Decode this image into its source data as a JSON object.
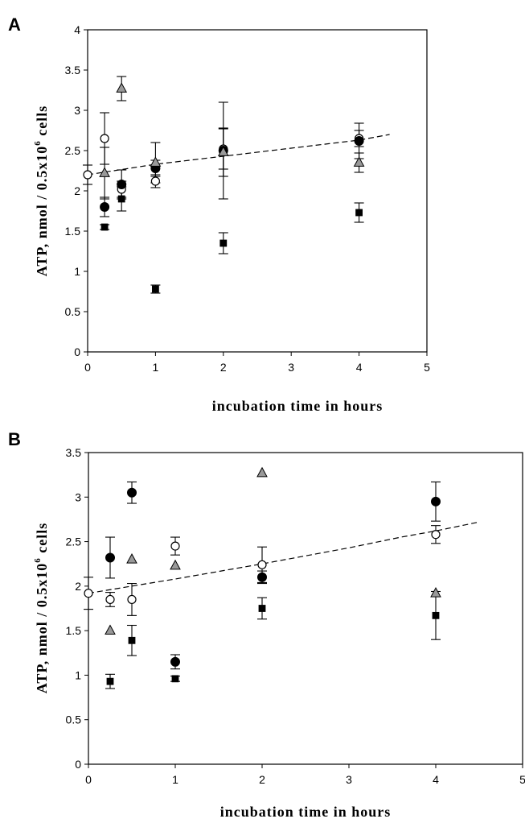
{
  "chart_data": [
    {
      "panel": "A",
      "type": "scatter",
      "xlabel": "incubation time in hours",
      "ylabel": {
        "pre": "ATP, nmol / 0.5x10",
        "sup": "6",
        "post": " cells"
      },
      "xlim": [
        0,
        5
      ],
      "ylim": [
        0,
        4
      ],
      "xticks": [
        "0",
        "1",
        "2",
        "3",
        "4",
        "5"
      ],
      "yticks": [
        "0",
        "0.5",
        "1",
        "1.5",
        "2",
        "2.5",
        "3",
        "3.5",
        "4"
      ],
      "grid": false,
      "series": [
        {
          "marker": "open-circle",
          "color": "#ffffff",
          "points": [
            {
              "x": 0,
              "y": 2.2,
              "err": 0.12
            },
            {
              "x": 0.25,
              "y": 2.65,
              "err": 0.32
            },
            {
              "x": 0.5,
              "y": 2.02,
              "err": 0.1
            },
            {
              "x": 1,
              "y": 2.12,
              "err": 0.08
            },
            {
              "x": 2,
              "y": 2.52,
              "err": 0.25
            },
            {
              "x": 4,
              "y": 2.65,
              "err": 0.1
            }
          ]
        },
        {
          "marker": "filled-circle",
          "color": "#000000",
          "points": [
            {
              "x": 0.25,
              "y": 1.8,
              "err": 0.12
            },
            {
              "x": 0.5,
              "y": 2.08,
              "err": 0.18
            },
            {
              "x": 1,
              "y": 2.28,
              "err": 0.1
            },
            {
              "x": 2,
              "y": 2.5,
              "err": 0.6
            },
            {
              "x": 4,
              "y": 2.62,
              "err": 0.22
            }
          ]
        },
        {
          "marker": "triangle",
          "color": "#999999",
          "points": [
            {
              "x": 0.25,
              "y": 2.22,
              "err": 0.32
            },
            {
              "x": 0.5,
              "y": 3.27,
              "err": 0.15
            },
            {
              "x": 1,
              "y": 2.35,
              "err": 0.25
            },
            {
              "x": 2,
              "y": 2.48,
              "err": 0.3
            },
            {
              "x": 4,
              "y": 2.35,
              "err": 0.12
            }
          ]
        },
        {
          "marker": "filled-square",
          "color": "#000000",
          "points": [
            {
              "x": 0.25,
              "y": 1.55,
              "err": 0.03
            },
            {
              "x": 0.5,
              "y": 1.9,
              "err": 0.15
            },
            {
              "x": 1,
              "y": 0.78,
              "err": 0.05
            },
            {
              "x": 2,
              "y": 1.35,
              "err": 0.13
            },
            {
              "x": 4,
              "y": 1.73,
              "err": 0.12
            }
          ]
        }
      ],
      "trend": {
        "style": "dashed",
        "x": [
          0,
          1,
          2,
          3,
          4,
          4.45
        ],
        "y": [
          2.2,
          2.33,
          2.43,
          2.53,
          2.63,
          2.7
        ]
      }
    },
    {
      "panel": "B",
      "type": "scatter",
      "xlabel": "incubation time in hours",
      "ylabel": {
        "pre": "ATP, nmol / 0.5x10",
        "sup": "6",
        "post": " cells"
      },
      "xlim": [
        0,
        5
      ],
      "ylim": [
        0,
        3.5
      ],
      "xticks": [
        "0",
        "1",
        "2",
        "3",
        "4",
        "5"
      ],
      "yticks": [
        "0",
        "0.5",
        "1",
        "1.5",
        "2",
        "2.5",
        "3",
        "3.5"
      ],
      "grid": false,
      "series": [
        {
          "marker": "open-circle",
          "color": "#ffffff",
          "points": [
            {
              "x": 0,
              "y": 1.92,
              "err": 0.18
            },
            {
              "x": 0.25,
              "y": 1.85,
              "err": 0.08
            },
            {
              "x": 0.5,
              "y": 1.85,
              "err": 0.18
            },
            {
              "x": 1,
              "y": 2.45,
              "err": 0.1
            },
            {
              "x": 2,
              "y": 2.24,
              "err": 0.2
            },
            {
              "x": 4,
              "y": 2.58,
              "err": 0.1
            }
          ]
        },
        {
          "marker": "filled-circle",
          "color": "#000000",
          "points": [
            {
              "x": 0.25,
              "y": 2.32,
              "err": 0.23
            },
            {
              "x": 0.5,
              "y": 3.05,
              "err": 0.12
            },
            {
              "x": 1,
              "y": 1.15,
              "err": 0.08
            },
            {
              "x": 2,
              "y": 2.1,
              "err": 0.07
            },
            {
              "x": 4,
              "y": 2.95,
              "err": 0.22
            }
          ]
        },
        {
          "marker": "triangle",
          "color": "#999999",
          "points": [
            {
              "x": 0.25,
              "y": 1.5,
              "err": 0
            },
            {
              "x": 0.5,
              "y": 2.3,
              "err": 0
            },
            {
              "x": 1,
              "y": 2.23,
              "err": 0
            },
            {
              "x": 2,
              "y": 3.27,
              "err": 0
            },
            {
              "x": 4,
              "y": 1.92,
              "err": 0
            }
          ]
        },
        {
          "marker": "filled-square",
          "color": "#000000",
          "points": [
            {
              "x": 0.25,
              "y": 0.93,
              "err": 0.08
            },
            {
              "x": 0.5,
              "y": 1.39,
              "err": 0.17
            },
            {
              "x": 1,
              "y": 0.96,
              "err": 0.03
            },
            {
              "x": 2,
              "y": 1.75,
              "err": 0.12
            },
            {
              "x": 4,
              "y": 1.67,
              "err": 0.27
            }
          ]
        }
      ],
      "trend": {
        "style": "dashed",
        "x": [
          0,
          1,
          2,
          3,
          3.6,
          4,
          4.5
        ],
        "y": [
          1.92,
          2.08,
          2.25,
          2.43,
          2.55,
          2.62,
          2.72
        ]
      }
    }
  ]
}
